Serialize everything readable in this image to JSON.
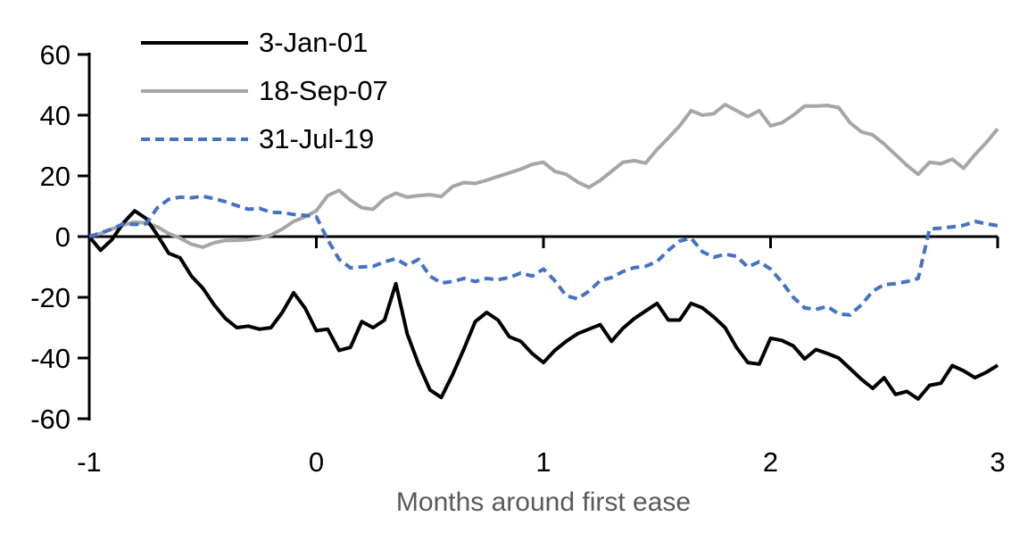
{
  "chart_data": {
    "type": "line",
    "title": "",
    "xlabel": "Months around first ease",
    "ylabel": "",
    "xlim": [
      -1,
      3
    ],
    "ylim": [
      -60,
      60
    ],
    "xticks": [
      -1,
      0,
      1,
      2,
      3
    ],
    "yticks": [
      60,
      40,
      20,
      0,
      -20,
      -40,
      -60
    ],
    "grid": false,
    "legend_position": "top-left",
    "axis_color": "#000000",
    "xlabel_color": "#595959",
    "x": [
      -1,
      -0.95,
      -0.9,
      -0.85,
      -0.8,
      -0.75,
      -0.7,
      -0.65,
      -0.6,
      -0.55,
      -0.5,
      -0.45,
      -0.4,
      -0.35,
      -0.3,
      -0.25,
      -0.2,
      -0.15,
      -0.1,
      -0.05,
      0,
      0.05,
      0.1,
      0.15,
      0.2,
      0.25,
      0.3,
      0.35,
      0.4,
      0.45,
      0.5,
      0.55,
      0.6,
      0.65,
      0.7,
      0.75,
      0.8,
      0.85,
      0.9,
      0.95,
      1,
      1.05,
      1.1,
      1.15,
      1.2,
      1.25,
      1.3,
      1.35,
      1.4,
      1.45,
      1.5,
      1.55,
      1.6,
      1.65,
      1.7,
      1.75,
      1.8,
      1.85,
      1.9,
      1.95,
      2,
      2.05,
      2.1,
      2.15,
      2.2,
      2.25,
      2.3,
      2.35,
      2.4,
      2.45,
      2.5,
      2.55,
      2.6,
      2.65,
      2.7,
      2.75,
      2.8,
      2.85,
      2.9,
      2.95,
      3
    ],
    "series": [
      {
        "name": "3-Jan-01",
        "color": "#000000",
        "style": "solid",
        "values": [
          0,
          -4.5,
          -1,
          4.5,
          8.5,
          6,
          0.5,
          -5.5,
          -7,
          -13,
          -17,
          -22.5,
          -27,
          -30,
          -29.5,
          -30.5,
          -30,
          -25,
          -18.5,
          -23.5,
          -31,
          -30.5,
          -37.5,
          -36.5,
          -28,
          -30,
          -27.5,
          -15.5,
          -32,
          -42,
          -50.5,
          -53,
          -45.5,
          -37,
          -28,
          -25,
          -27.5,
          -33,
          -34.5,
          -38.5,
          -41.5,
          -37.5,
          -34.5,
          -32,
          -30.5,
          -29,
          -34.5,
          -30.2,
          -27,
          -24.5,
          -22,
          -27.5,
          -27.5,
          -22,
          -23.5,
          -26.5,
          -30,
          -36.5,
          -41.5,
          -42,
          -33.5,
          -34.2,
          -36,
          -40.3,
          -37.2,
          -38.5,
          -40,
          -43.5,
          -47,
          -50,
          -46.5,
          -52,
          -51,
          -53.5,
          -49,
          -48.3,
          -42.5,
          -44.2,
          -46.5,
          -44.7,
          -42.4
        ]
      },
      {
        "name": "18-Sep-07",
        "color": "#A6A6A6",
        "style": "solid",
        "values": [
          0,
          1,
          2.5,
          3.8,
          4.8,
          4.5,
          3.2,
          1,
          -0.5,
          -2.5,
          -3.5,
          -2,
          -1.3,
          -1.2,
          -1,
          -0.5,
          0.5,
          2.5,
          5,
          6.5,
          8.5,
          13.5,
          15.2,
          12,
          9.5,
          9,
          12.5,
          14.3,
          13,
          13.5,
          13.8,
          13.2,
          16.5,
          17.8,
          17.5,
          18.6,
          19.8,
          21,
          22.2,
          23.8,
          24.5,
          21.5,
          20.5,
          18,
          16.2,
          18.5,
          21.5,
          24.5,
          25,
          24.2,
          28.7,
          32.5,
          36.5,
          41.5,
          40,
          40.5,
          43.5,
          41.5,
          39.5,
          41.5,
          36.5,
          37.5,
          40,
          43,
          43,
          43.2,
          42.5,
          37.5,
          34.5,
          33.5,
          30.5,
          27,
          23.5,
          20.5,
          24.5,
          24,
          25.5,
          22.5,
          27,
          31,
          35.5
        ]
      },
      {
        "name": "31-Jul-19",
        "color": "#4472C4",
        "style": "dashed",
        "values": [
          0,
          1.2,
          2.5,
          4.2,
          4,
          4.2,
          9.5,
          12.3,
          13,
          12.8,
          13.3,
          12.5,
          11.5,
          10.2,
          9,
          9.3,
          8,
          7.9,
          7.3,
          7,
          6.5,
          -1,
          -7.5,
          -10.3,
          -10,
          -9.8,
          -8.3,
          -7.3,
          -9.5,
          -7.5,
          -13,
          -15.3,
          -14.8,
          -13.8,
          -14.8,
          -13.8,
          -14.2,
          -13.5,
          -12,
          -13,
          -10.7,
          -14.5,
          -19.5,
          -20.5,
          -18,
          -14.5,
          -13.5,
          -11.5,
          -10.2,
          -9.8,
          -8.2,
          -4.5,
          -1.5,
          -0.5,
          -5,
          -6.8,
          -5.8,
          -6.5,
          -10,
          -8.3,
          -10.7,
          -15,
          -20,
          -23.5,
          -24,
          -23,
          -25.5,
          -25.8,
          -22.5,
          -18,
          -15.8,
          -15.5,
          -14.8,
          -13.8,
          2.5,
          2.8,
          3.2,
          3.7,
          5,
          4.2,
          3.6
        ]
      }
    ]
  }
}
